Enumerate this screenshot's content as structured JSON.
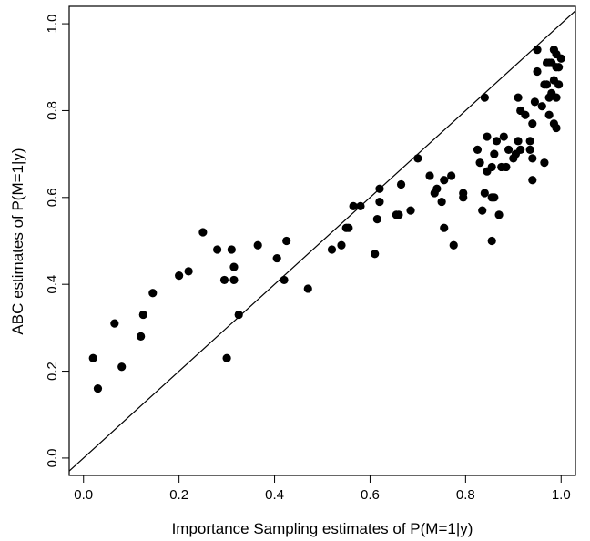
{
  "chart_data": {
    "type": "scatter",
    "xlabel": "Importance Sampling estimates of P(M=1|y)",
    "ylabel": "ABC estimates of P(M=1|y)",
    "xlim": [
      -0.03,
      1.03
    ],
    "ylim": [
      -0.04,
      1.04
    ],
    "x_ticks": [
      0.0,
      0.2,
      0.4,
      0.6,
      0.8,
      1.0
    ],
    "y_ticks": [
      0.0,
      0.2,
      0.4,
      0.6,
      0.8,
      1.0
    ],
    "x_tick_labels": [
      "0.0",
      "0.2",
      "0.4",
      "0.6",
      "0.8",
      "1.0"
    ],
    "y_tick_labels": [
      "0.0",
      "0.2",
      "0.4",
      "0.6",
      "0.8",
      "1.0"
    ],
    "reference_line": {
      "slope": 1,
      "intercept": 0
    },
    "grid": false,
    "marker_color": "#000000",
    "points": [
      [
        0.02,
        0.23
      ],
      [
        0.03,
        0.16
      ],
      [
        0.065,
        0.31
      ],
      [
        0.08,
        0.21
      ],
      [
        0.12,
        0.28
      ],
      [
        0.125,
        0.33
      ],
      [
        0.145,
        0.38
      ],
      [
        0.2,
        0.42
      ],
      [
        0.22,
        0.43
      ],
      [
        0.25,
        0.52
      ],
      [
        0.28,
        0.48
      ],
      [
        0.295,
        0.41
      ],
      [
        0.3,
        0.23
      ],
      [
        0.31,
        0.48
      ],
      [
        0.315,
        0.44
      ],
      [
        0.315,
        0.41
      ],
      [
        0.325,
        0.33
      ],
      [
        0.365,
        0.49
      ],
      [
        0.405,
        0.46
      ],
      [
        0.42,
        0.41
      ],
      [
        0.425,
        0.5
      ],
      [
        0.47,
        0.39
      ],
      [
        0.52,
        0.48
      ],
      [
        0.54,
        0.49
      ],
      [
        0.55,
        0.53
      ],
      [
        0.555,
        0.53
      ],
      [
        0.565,
        0.58
      ],
      [
        0.58,
        0.58
      ],
      [
        0.61,
        0.47
      ],
      [
        0.615,
        0.55
      ],
      [
        0.62,
        0.59
      ],
      [
        0.62,
        0.62
      ],
      [
        0.655,
        0.56
      ],
      [
        0.66,
        0.56
      ],
      [
        0.665,
        0.63
      ],
      [
        0.685,
        0.57
      ],
      [
        0.7,
        0.69
      ],
      [
        0.725,
        0.65
      ],
      [
        0.735,
        0.61
      ],
      [
        0.74,
        0.62
      ],
      [
        0.75,
        0.59
      ],
      [
        0.755,
        0.64
      ],
      [
        0.755,
        0.53
      ],
      [
        0.77,
        0.65
      ],
      [
        0.775,
        0.49
      ],
      [
        0.795,
        0.6
      ],
      [
        0.795,
        0.61
      ],
      [
        0.825,
        0.71
      ],
      [
        0.83,
        0.68
      ],
      [
        0.835,
        0.57
      ],
      [
        0.84,
        0.83
      ],
      [
        0.84,
        0.61
      ],
      [
        0.845,
        0.74
      ],
      [
        0.845,
        0.66
      ],
      [
        0.855,
        0.67
      ],
      [
        0.855,
        0.6
      ],
      [
        0.855,
        0.5
      ],
      [
        0.86,
        0.7
      ],
      [
        0.86,
        0.6
      ],
      [
        0.865,
        0.73
      ],
      [
        0.87,
        0.56
      ],
      [
        0.875,
        0.67
      ],
      [
        0.88,
        0.74
      ],
      [
        0.885,
        0.67
      ],
      [
        0.89,
        0.71
      ],
      [
        0.9,
        0.69
      ],
      [
        0.905,
        0.7
      ],
      [
        0.91,
        0.83
      ],
      [
        0.91,
        0.73
      ],
      [
        0.915,
        0.71
      ],
      [
        0.915,
        0.8
      ],
      [
        0.925,
        0.79
      ],
      [
        0.935,
        0.71
      ],
      [
        0.935,
        0.73
      ],
      [
        0.94,
        0.69
      ],
      [
        0.94,
        0.64
      ],
      [
        0.94,
        0.77
      ],
      [
        0.945,
        0.82
      ],
      [
        0.95,
        0.89
      ],
      [
        0.95,
        0.94
      ],
      [
        0.96,
        0.81
      ],
      [
        0.965,
        0.68
      ],
      [
        0.965,
        0.86
      ],
      [
        0.97,
        0.91
      ],
      [
        0.97,
        0.86
      ],
      [
        0.975,
        0.83
      ],
      [
        0.975,
        0.79
      ],
      [
        0.98,
        0.91
      ],
      [
        0.98,
        0.84
      ],
      [
        0.985,
        0.94
      ],
      [
        0.985,
        0.87
      ],
      [
        0.985,
        0.77
      ],
      [
        0.99,
        0.83
      ],
      [
        0.99,
        0.76
      ],
      [
        0.99,
        0.9
      ],
      [
        0.99,
        0.93
      ],
      [
        0.995,
        0.9
      ],
      [
        0.995,
        0.86
      ],
      [
        1.0,
        0.92
      ],
      [
        0.975,
        0.91
      ]
    ]
  }
}
